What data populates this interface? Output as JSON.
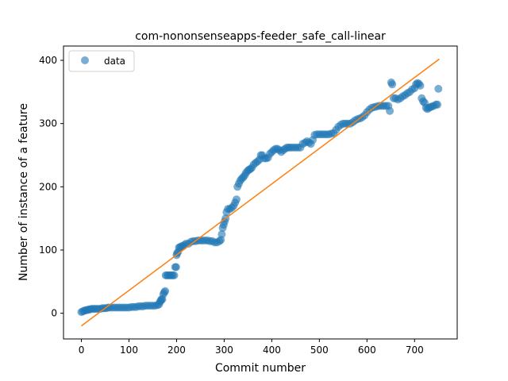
{
  "chart_data": {
    "type": "scatter",
    "title": "com-nononsenseapps-feeder_safe_call-linear",
    "xlabel": "Commit number",
    "ylabel": "Number of instance of a feature",
    "xlim": [
      -37.6,
      789.6
    ],
    "ylim": [
      -40.6,
      422.6
    ],
    "xticks": [
      0,
      100,
      200,
      300,
      400,
      500,
      600,
      700
    ],
    "yticks": [
      0,
      100,
      200,
      300,
      400
    ],
    "grid": false,
    "legend": {
      "location": "top-left",
      "entries": [
        "data"
      ]
    },
    "series": [
      {
        "name": "data",
        "kind": "scatter",
        "color": "#1f77b4",
        "alpha": 0.6,
        "points": [
          [
            0,
            2
          ],
          [
            3,
            3
          ],
          [
            6,
            4
          ],
          [
            9,
            5
          ],
          [
            12,
            5
          ],
          [
            15,
            6
          ],
          [
            18,
            6
          ],
          [
            21,
            7
          ],
          [
            25,
            7
          ],
          [
            28,
            7
          ],
          [
            32,
            7
          ],
          [
            36,
            7
          ],
          [
            40,
            7
          ],
          [
            44,
            8
          ],
          [
            48,
            8
          ],
          [
            52,
            8
          ],
          [
            56,
            9
          ],
          [
            60,
            9
          ],
          [
            65,
            9
          ],
          [
            70,
            9
          ],
          [
            75,
            9
          ],
          [
            80,
            9
          ],
          [
            85,
            9
          ],
          [
            90,
            9
          ],
          [
            95,
            9
          ],
          [
            100,
            9
          ],
          [
            105,
            10
          ],
          [
            110,
            10
          ],
          [
            115,
            10
          ],
          [
            120,
            11
          ],
          [
            125,
            11
          ],
          [
            130,
            11
          ],
          [
            135,
            12
          ],
          [
            140,
            12
          ],
          [
            145,
            12
          ],
          [
            150,
            12
          ],
          [
            155,
            12
          ],
          [
            160,
            13
          ],
          [
            163,
            14
          ],
          [
            165,
            18
          ],
          [
            167,
            20
          ],
          [
            168,
            22
          ],
          [
            170,
            22
          ],
          [
            172,
            30
          ],
          [
            174,
            33
          ],
          [
            176,
            35
          ],
          [
            177,
            60
          ],
          [
            180,
            60
          ],
          [
            183,
            60
          ],
          [
            186,
            60
          ],
          [
            189,
            60
          ],
          [
            192,
            60
          ],
          [
            195,
            60
          ],
          [
            197,
            73
          ],
          [
            199,
            73
          ],
          [
            200,
            92
          ],
          [
            201,
            95
          ],
          [
            203,
            97
          ],
          [
            205,
            104
          ],
          [
            207,
            104
          ],
          [
            210,
            106
          ],
          [
            213,
            106
          ],
          [
            216,
            108
          ],
          [
            220,
            110
          ],
          [
            225,
            110
          ],
          [
            230,
            113
          ],
          [
            235,
            114
          ],
          [
            240,
            114
          ],
          [
            245,
            115
          ],
          [
            250,
            115
          ],
          [
            255,
            115
          ],
          [
            260,
            115
          ],
          [
            265,
            115
          ],
          [
            270,
            114
          ],
          [
            275,
            114
          ],
          [
            280,
            112
          ],
          [
            285,
            112
          ],
          [
            290,
            114
          ],
          [
            293,
            116
          ],
          [
            295,
            125
          ],
          [
            297,
            135
          ],
          [
            299,
            140
          ],
          [
            301,
            145
          ],
          [
            303,
            150
          ],
          [
            305,
            160
          ],
          [
            308,
            165
          ],
          [
            312,
            165
          ],
          [
            316,
            167
          ],
          [
            320,
            170
          ],
          [
            323,
            175
          ],
          [
            326,
            180
          ],
          [
            328,
            200
          ],
          [
            331,
            205
          ],
          [
            334,
            210
          ],
          [
            337,
            213
          ],
          [
            340,
            215
          ],
          [
            343,
            218
          ],
          [
            346,
            222
          ],
          [
            349,
            225
          ],
          [
            352,
            227
          ],
          [
            355,
            228
          ],
          [
            358,
            230
          ],
          [
            362,
            235
          ],
          [
            366,
            238
          ],
          [
            370,
            240
          ],
          [
            374,
            243
          ],
          [
            377,
            250
          ],
          [
            380,
            250
          ],
          [
            384,
            245
          ],
          [
            388,
            245
          ],
          [
            392,
            246
          ],
          [
            396,
            252
          ],
          [
            400,
            255
          ],
          [
            404,
            258
          ],
          [
            408,
            260
          ],
          [
            412,
            260
          ],
          [
            416,
            258
          ],
          [
            420,
            255
          ],
          [
            424,
            258
          ],
          [
            428,
            260
          ],
          [
            432,
            262
          ],
          [
            436,
            262
          ],
          [
            440,
            262
          ],
          [
            445,
            262
          ],
          [
            450,
            262
          ],
          [
            455,
            262
          ],
          [
            460,
            262
          ],
          [
            465,
            268
          ],
          [
            470,
            270
          ],
          [
            474,
            272
          ],
          [
            478,
            270
          ],
          [
            482,
            268
          ],
          [
            486,
            274
          ],
          [
            490,
            282
          ],
          [
            495,
            283
          ],
          [
            500,
            283
          ],
          [
            505,
            283
          ],
          [
            510,
            283
          ],
          [
            515,
            283
          ],
          [
            520,
            283
          ],
          [
            525,
            284
          ],
          [
            530,
            285
          ],
          [
            535,
            290
          ],
          [
            540,
            295
          ],
          [
            545,
            298
          ],
          [
            550,
            300
          ],
          [
            555,
            300
          ],
          [
            560,
            300
          ],
          [
            565,
            300
          ],
          [
            570,
            302
          ],
          [
            575,
            305
          ],
          [
            580,
            307
          ],
          [
            585,
            308
          ],
          [
            590,
            310
          ],
          [
            595,
            313
          ],
          [
            600,
            318
          ],
          [
            605,
            322
          ],
          [
            610,
            325
          ],
          [
            615,
            326
          ],
          [
            620,
            327
          ],
          [
            625,
            328
          ],
          [
            630,
            328
          ],
          [
            635,
            328
          ],
          [
            640,
            328
          ],
          [
            645,
            328
          ],
          [
            648,
            320
          ],
          [
            651,
            365
          ],
          [
            653,
            362
          ],
          [
            656,
            340
          ],
          [
            660,
            340
          ],
          [
            665,
            338
          ],
          [
            670,
            340
          ],
          [
            675,
            343
          ],
          [
            680,
            345
          ],
          [
            685,
            348
          ],
          [
            690,
            350
          ],
          [
            695,
            354
          ],
          [
            700,
            356
          ],
          [
            703,
            362
          ],
          [
            706,
            364
          ],
          [
            709,
            363
          ],
          [
            712,
            360
          ],
          [
            715,
            340
          ],
          [
            718,
            335
          ],
          [
            721,
            333
          ],
          [
            724,
            325
          ],
          [
            727,
            323
          ],
          [
            730,
            325
          ],
          [
            733,
            326
          ],
          [
            736,
            327
          ],
          [
            740,
            328
          ],
          [
            745,
            330
          ],
          [
            748,
            330
          ],
          [
            750,
            355
          ]
        ]
      },
      {
        "name": "",
        "kind": "line",
        "color": "#ff7f0e",
        "points": [
          [
            0,
            -20
          ],
          [
            752,
            402
          ]
        ]
      }
    ]
  }
}
